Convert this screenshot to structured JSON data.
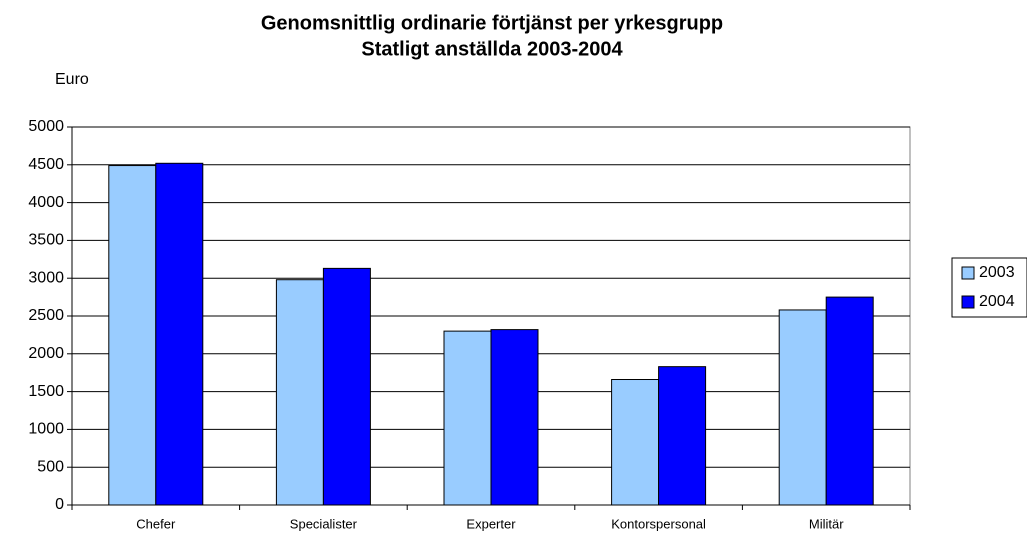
{
  "chart_data": {
    "type": "bar",
    "title": "Genomsnittlig ordinarie förtjänst per yrkesgrupp",
    "subtitle": "Statligt anställda 2003-2004",
    "y_label": "Euro",
    "categories": [
      "Chefer",
      "Specialister",
      "Experter",
      "Kontorspersonal",
      "Militär"
    ],
    "series": [
      {
        "name": "2003",
        "color": "#99ccff",
        "values": [
          4490,
          2980,
          2300,
          1660,
          2580
        ]
      },
      {
        "name": "2004",
        "color": "#0000ff",
        "values": [
          4520,
          3130,
          2320,
          1830,
          2750
        ]
      }
    ],
    "ylim": [
      0,
      5000
    ],
    "yticks": [
      0,
      500,
      1000,
      1500,
      2000,
      2500,
      3000,
      3500,
      4000,
      4500,
      5000
    ],
    "grid": true,
    "legend": "right"
  }
}
